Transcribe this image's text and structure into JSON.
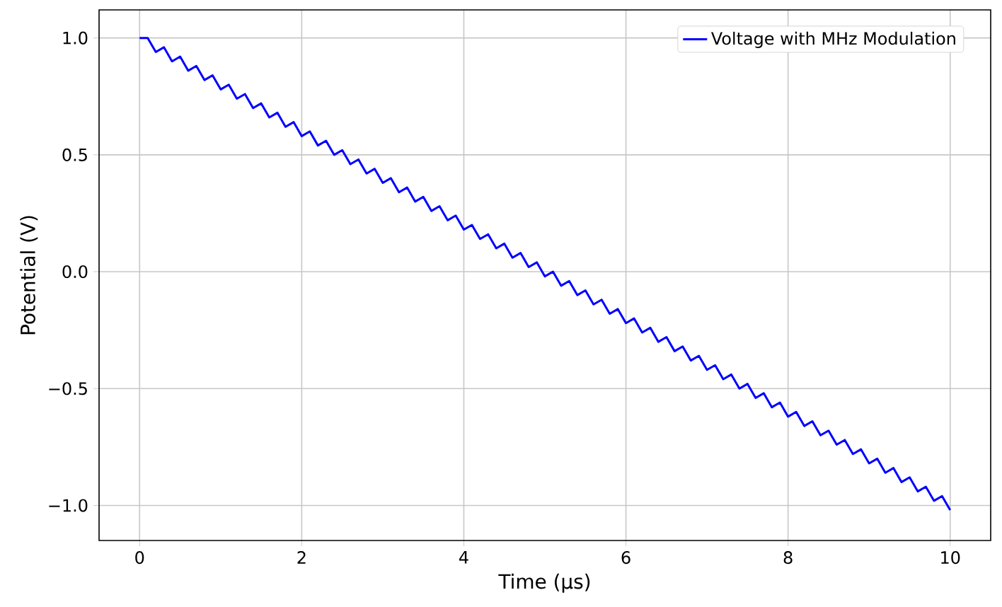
{
  "chart_data": {
    "type": "line",
    "xlabel": "Time (µs)",
    "ylabel": "Potential (V)",
    "xlim": [
      -0.5,
      10.5
    ],
    "ylim": [
      -1.15,
      1.12
    ],
    "xticks": [
      0,
      2,
      4,
      6,
      8,
      10
    ],
    "yticks": [
      {
        "value": -1.0,
        "label": "−1.0"
      },
      {
        "value": -0.5,
        "label": "−0.5"
      },
      {
        "value": 0.0,
        "label": "0.0"
      },
      {
        "value": 0.5,
        "label": "0.5"
      },
      {
        "value": 1.0,
        "label": "1.0"
      }
    ],
    "grid": true,
    "legend": "top right",
    "marker": "none",
    "line_style": "solid",
    "x": [
      0,
      0.1,
      0.2,
      0.3,
      0.4,
      0.5,
      0.6,
      0.7,
      0.8,
      0.9,
      1,
      1.1,
      1.2,
      1.3,
      1.4,
      1.5,
      1.6,
      1.7,
      1.8,
      1.9,
      2,
      2.1,
      2.2,
      2.3,
      2.4,
      2.5,
      2.6,
      2.7,
      2.8,
      2.9,
      3,
      3.1,
      3.2,
      3.3,
      3.4,
      3.5,
      3.6,
      3.7,
      3.8,
      3.9,
      4,
      4.1,
      4.2,
      4.3,
      4.4,
      4.5,
      4.6,
      4.7,
      4.8,
      4.9,
      5,
      5.1,
      5.2,
      5.3,
      5.4,
      5.5,
      5.6,
      5.7,
      5.8,
      5.9,
      6,
      6.1,
      6.2,
      6.3,
      6.4,
      6.5,
      6.6,
      6.7,
      6.8,
      6.9,
      7,
      7.1,
      7.2,
      7.3,
      7.4,
      7.5,
      7.6,
      7.7,
      7.8,
      7.9,
      8,
      8.1,
      8.2,
      8.3,
      8.4,
      8.5,
      8.6,
      8.7,
      8.8,
      8.9,
      9,
      9.1,
      9.2,
      9.3,
      9.4,
      9.5,
      9.6,
      9.7,
      9.8,
      9.9,
      10
    ],
    "series": [
      {
        "name": "Voltage with MHz Modulation",
        "color": "#0000ff",
        "values": [
          1.0,
          1.0,
          0.94,
          0.96,
          0.9,
          0.92,
          0.86,
          0.88,
          0.82,
          0.84,
          0.78,
          0.8,
          0.74,
          0.76,
          0.7,
          0.72,
          0.66,
          0.68,
          0.62,
          0.64,
          0.58,
          0.6,
          0.54,
          0.56,
          0.5,
          0.52,
          0.46,
          0.48,
          0.42,
          0.44,
          0.38,
          0.4,
          0.34,
          0.36,
          0.3,
          0.32,
          0.26,
          0.28,
          0.22,
          0.24,
          0.18,
          0.2,
          0.14,
          0.16,
          0.1,
          0.12,
          0.06,
          0.08,
          0.02,
          0.04,
          -0.02,
          0.0,
          -0.06,
          -0.04,
          -0.1,
          -0.08,
          -0.14,
          -0.12,
          -0.18,
          -0.16,
          -0.22,
          -0.2,
          -0.26,
          -0.24,
          -0.3,
          -0.28,
          -0.34,
          -0.32,
          -0.38,
          -0.36,
          -0.42,
          -0.4,
          -0.46,
          -0.44,
          -0.5,
          -0.48,
          -0.54,
          -0.52,
          -0.58,
          -0.56,
          -0.62,
          -0.6,
          -0.66,
          -0.64,
          -0.7,
          -0.68,
          -0.74,
          -0.72,
          -0.78,
          -0.76,
          -0.82,
          -0.8,
          -0.86,
          -0.84,
          -0.9,
          -0.88,
          -0.94,
          -0.92,
          -0.98,
          -0.96,
          -1.02
        ]
      }
    ]
  }
}
